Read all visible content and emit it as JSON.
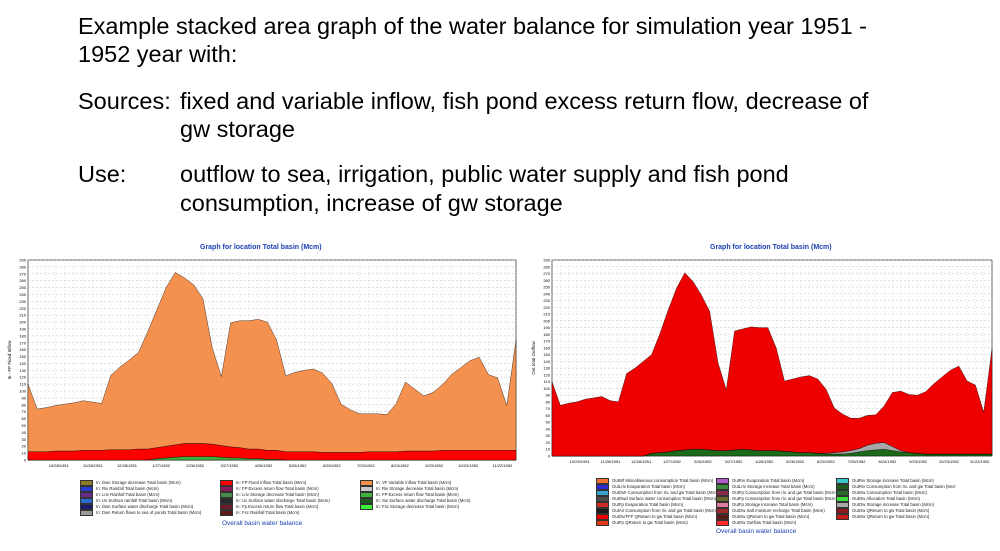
{
  "slide": {
    "title_line1": "Example stacked area graph of the water balance for simulation year 1951 -",
    "title_line2": "1952 year with:",
    "sources_label": "Sources:",
    "sources_line1": "fixed and variable inflow, fish pond excess return flow, decrease of",
    "sources_line2": "gw storage",
    "use_label": "Use:",
    "use_line1": "outflow to sea, irrigation, public water supply and fish pond",
    "use_line2": "consumption, increase of gw storage"
  },
  "chart_data": [
    {
      "type": "area",
      "title": "Graph for location Total basin (Mcm)",
      "caption": "Overall basin water balance",
      "ylabel": "In - FP Ficed Inflow",
      "ylim": [
        0,
        290
      ],
      "y_ticks": [
        0,
        10,
        20,
        30,
        40,
        50,
        60,
        70,
        80,
        90,
        100,
        110,
        120,
        130,
        140,
        150,
        160,
        170,
        180,
        190,
        200,
        210,
        220,
        230,
        240,
        250,
        260,
        270,
        280,
        290
      ],
      "x_tick_labels": [
        "10/28/1951",
        "11/28/1951",
        "12/28/1951",
        "1/27/1952",
        "2/26/1952",
        "3/27/1952",
        "4/26/1952",
        "5/26/1952",
        "6/25/1952",
        "7/25/1952",
        "8/24/1952",
        "9/23/1952",
        "10/23/1952",
        "11/22/1952"
      ],
      "grid": true,
      "colors": {
        "background": "#ffffff",
        "grid": "#b0b0b0",
        "plot_bg": "#ffffff"
      },
      "series": [
        {
          "color": "#8a7a2a",
          "values": [
            0,
            0,
            0,
            0,
            0,
            0,
            0,
            0,
            0,
            0,
            0,
            0,
            0,
            0,
            0,
            0,
            0,
            0,
            0,
            0,
            0,
            0,
            0,
            0,
            0,
            0,
            0,
            0,
            0,
            0,
            0,
            0,
            0,
            0,
            0,
            0,
            0,
            0,
            0,
            0,
            0,
            0,
            0,
            0,
            0,
            0,
            0,
            0,
            0,
            0,
            0,
            0,
            0,
            0
          ]
        },
        {
          "color": "#3cb43c",
          "values": [
            0,
            0,
            0,
            0,
            0,
            0,
            0,
            0,
            0,
            0,
            0,
            0,
            0,
            0,
            2,
            3,
            4,
            5,
            5,
            5,
            5,
            4,
            3,
            3,
            2,
            2,
            1,
            1,
            0,
            0,
            0,
            0,
            0,
            0,
            0,
            0,
            0,
            0,
            0,
            0,
            0,
            0,
            0,
            0,
            0,
            0,
            0,
            0,
            0,
            0,
            0,
            0,
            0,
            0
          ]
        },
        {
          "color": "#ff0000",
          "values": [
            12,
            12,
            12,
            13,
            13,
            13,
            14,
            14,
            14,
            15,
            15,
            15,
            16,
            16,
            16,
            17,
            18,
            19,
            19,
            19,
            18,
            17,
            16,
            15,
            14,
            14,
            13,
            13,
            12,
            12,
            12,
            12,
            11,
            11,
            11,
            11,
            11,
            12,
            12,
            12,
            12,
            13,
            13,
            13,
            13,
            14,
            14,
            14,
            14,
            14,
            14,
            14,
            14,
            14
          ]
        },
        {
          "color": "#f5914f",
          "values": [
            98,
            62,
            64,
            66,
            68,
            70,
            72,
            70,
            68,
            108,
            120,
            130,
            140,
            170,
            200,
            230,
            250,
            240,
            230,
            210,
            140,
            100,
            180,
            184,
            186,
            188,
            186,
            160,
            110,
            115,
            118,
            120,
            115,
            100,
            70,
            62,
            56,
            55,
            55,
            54,
            70,
            100,
            90,
            80,
            85,
            95,
            110,
            120,
            130,
            135,
            110,
            105,
            65,
            160
          ]
        }
      ],
      "x": [
        "10/1951",
        "",
        "",
        "",
        "11/1951",
        "",
        "",
        "",
        "12/1951",
        "",
        "",
        "",
        "1/1952",
        "",
        "",
        "",
        "2/1952",
        "",
        "",
        "",
        "3/1952",
        "",
        "",
        "",
        "4/1952",
        "",
        "",
        "",
        "5/1952",
        "",
        "",
        "",
        "6/1952",
        "",
        "",
        "",
        "7/1952",
        "",
        "",
        "",
        "8/1952",
        "",
        "",
        "",
        "9/1952",
        "",
        "",
        "",
        "10/1952",
        "",
        "",
        "",
        "11/1952",
        ""
      ],
      "legend": [
        {
          "label": "In: Dwn Storage decrease Total basin (Mcm)",
          "color": "#8a7a2a"
        },
        {
          "label": "In: FP Fixed inflow Total basin (Mcm)",
          "color": "#ff0000"
        },
        {
          "label": "In: VF Variable inflow Total basin (Mcm)",
          "color": "#f5914f"
        },
        {
          "label": "In: Riv Rainfall Total basin (Mcm)",
          "color": "#2a3ccf"
        },
        {
          "label": "In: FP Excess return flow Total basin (Mcm)",
          "color": "#8b1a5a"
        },
        {
          "label": "In: Riv Storage decrease Total basin (Mcm)",
          "color": "#c8c8c8"
        },
        {
          "label": "In: Lriv Rainfall Total basin (Mcm)",
          "color": "#6a2a8a"
        },
        {
          "label": "In: Lriv Storage decrease Total basin (Mcm)",
          "color": "#4a8a4a"
        },
        {
          "label": "In: FP Excess return flow Total basin (Mcm)",
          "color": "#3cb43c"
        },
        {
          "label": "In: Uv Surface rainfall Total basin (Mcm)",
          "color": "#2a6acf"
        },
        {
          "label": "In: Uv Surface water discharge Total basin (Mcm)",
          "color": "#2a2a2a"
        },
        {
          "label": "In: Sw Surface water discharge Total basin (Mcm)",
          "color": "#1a5a1a"
        },
        {
          "label": "In: Dwn Surface water discharge Total basin (Mcm)",
          "color": "#1a1a6a"
        },
        {
          "label": "In: Fp Excess return flow Total basin (Mcm)",
          "color": "#6a1a2a"
        },
        {
          "label": "In: Fsc Storage decrease Total basin (Mcm)",
          "color": "#3cf03c"
        },
        {
          "label": "In: Dwn Return flows to sea of ponds Total basin (Mcm)",
          "color": "#9a9a9a"
        },
        {
          "label": "In: Fsc Rainfall Total basin (Mcm)",
          "color": "#5a1a1a"
        }
      ]
    },
    {
      "type": "area",
      "title": "Graph for location Total basin (Mcm)",
      "caption": "Overall basin water balance",
      "ylabel": "Out total Outflow",
      "ylim": [
        0,
        290
      ],
      "y_ticks": [
        0,
        10,
        20,
        30,
        40,
        50,
        60,
        70,
        80,
        90,
        100,
        110,
        120,
        130,
        140,
        150,
        160,
        170,
        180,
        190,
        200,
        210,
        220,
        230,
        240,
        250,
        260,
        270,
        280,
        290
      ],
      "x_tick_labels": [
        "10/29/1951",
        "11/28/1951",
        "12/28/1951",
        "1/27/1952",
        "2/26/1952",
        "3/27/1952",
        "4/26/1952",
        "5/26/1952",
        "6/25/1952",
        "7/25/1952",
        "8/24/1952",
        "9/23/1952",
        "10/23/1952",
        "11/22/1952"
      ],
      "grid": true,
      "colors": {
        "background": "#ffffff",
        "grid": "#b0b0b0",
        "plot_bg": "#ffffff"
      },
      "series": [
        {
          "color": "#1a6a1a",
          "values": [
            0,
            0,
            0,
            0,
            0,
            0,
            0,
            0,
            0,
            0,
            0,
            0,
            4,
            5,
            6,
            8,
            9,
            10,
            10,
            9,
            8,
            8,
            9,
            10,
            9,
            8,
            8,
            8,
            7,
            6,
            5,
            5,
            4,
            3,
            3,
            3,
            4,
            6,
            8,
            9,
            10,
            8,
            6,
            5,
            4,
            3,
            3,
            3,
            3,
            3,
            3,
            3,
            3,
            3
          ]
        },
        {
          "color": "#a8a8a8",
          "values": [
            0,
            0,
            0,
            0,
            0,
            0,
            0,
            0,
            0,
            0,
            0,
            0,
            0,
            0,
            0,
            0,
            0,
            0,
            0,
            0,
            0,
            0,
            0,
            0,
            0,
            0,
            0,
            0,
            0,
            0,
            0,
            0,
            0,
            1,
            2,
            3,
            4,
            5,
            8,
            10,
            10,
            6,
            2,
            0,
            0,
            0,
            0,
            0,
            0,
            0,
            0,
            0,
            0,
            0
          ]
        },
        {
          "color": "#ee0000",
          "values": [
            110,
            75,
            78,
            80,
            84,
            86,
            88,
            82,
            80,
            122,
            130,
            140,
            146,
            176,
            210,
            240,
            262,
            248,
            228,
            205,
            130,
            90,
            176,
            178,
            182,
            182,
            182,
            152,
            104,
            108,
            112,
            114,
            110,
            95,
            66,
            56,
            48,
            45,
            44,
            42,
            54,
            80,
            88,
            86,
            86,
            92,
            104,
            114,
            124,
            130,
            108,
            102,
            62,
            156
          ]
        }
      ],
      "x": [
        "10/1951",
        "",
        "",
        "",
        "11/1951",
        "",
        "",
        "",
        "12/1951",
        "",
        "",
        "",
        "1/1952",
        "",
        "",
        "",
        "2/1952",
        "",
        "",
        "",
        "3/1952",
        "",
        "",
        "",
        "4/1952",
        "",
        "",
        "",
        "5/1952",
        "",
        "",
        "",
        "6/1952",
        "",
        "",
        "",
        "7/1952",
        "",
        "",
        "",
        "8/1952",
        "",
        "",
        "",
        "9/1952",
        "",
        "",
        "",
        "10/1952",
        "",
        "",
        "",
        "11/1952",
        ""
      ],
      "legend": [
        {
          "label": "OutWf Miscellaneous consumption Total basin (Mcm)",
          "color": "#f07030"
        },
        {
          "label": "OutRiv Evaporation Total basin (Mcm)",
          "color": "#b05ac8"
        },
        {
          "label": "OutRiv Storage increase Total basin (Mcm)",
          "color": "#3cc8c8"
        },
        {
          "label": "OutLriv Evaporation Total basin (Mcm)",
          "color": "#2a2acf"
        },
        {
          "label": "OutLriv Storage increase Total basin (Mcm)",
          "color": "#3c8a3c"
        },
        {
          "label": "OutRiv Consumption from riv. and gw Total basin (Mcm)",
          "color": "#1a5a1a"
        },
        {
          "label": "OutGW Consumption from riv. and gw Total basin (Mcm)",
          "color": "#3ca0cf"
        },
        {
          "label": "OutFp Consumption from riv. and gw Total basin (Mcm)",
          "color": "#8a2a4a"
        },
        {
          "label": "OutOw Consumption Total basin (Mcm)",
          "color": "#2a6a2a"
        },
        {
          "label": "OutOwd Surface water consumption Total basin (Mcm)",
          "color": "#4a4a4a"
        },
        {
          "label": "OutFp Consumption from riv. and gw Total basin (Mcm)",
          "color": "#6a6a2a"
        },
        {
          "label": "OutOw Allocation Total basin (Mcm)",
          "color": "#3ce03c"
        },
        {
          "label": "OutFp Evaporation Total basin (Mcm)",
          "color": "#cf2a2a"
        },
        {
          "label": "OutFp Storage increase Total basin (Mcm)",
          "color": "#e07aa0"
        },
        {
          "label": "OutOw Storage increase Total basin (Mcm)",
          "color": "#a8a8a8"
        },
        {
          "label": "OutAir Consumption from riv. and gw Total basin (Mcm)",
          "color": "#1a1a1a"
        },
        {
          "label": "OutOw Salt moisture recharge Total basin (Mcm)",
          "color": "#a02a2a"
        },
        {
          "label": "OutOw QReturn to gw Total basin (Mcm)",
          "color": "#8a1a1a"
        },
        {
          "label": "OutOv/FFF QRatum to gw Total basin (Mcm)",
          "color": "#ee0000"
        },
        {
          "label": "OutOw QReturn to gw Total basin (Mcm)",
          "color": "#5a1a1a"
        },
        {
          "label": "OutOw QReturn to gw Total basin (Mcm)",
          "color": "#c81a1a"
        },
        {
          "label": "OutFp QReturn to gw Total basin (Mcm)",
          "color": "#e03a1a"
        },
        {
          "label": "OutOw Outflow Total basin (Mcm)",
          "color": "#ff2a2a"
        }
      ]
    }
  ]
}
